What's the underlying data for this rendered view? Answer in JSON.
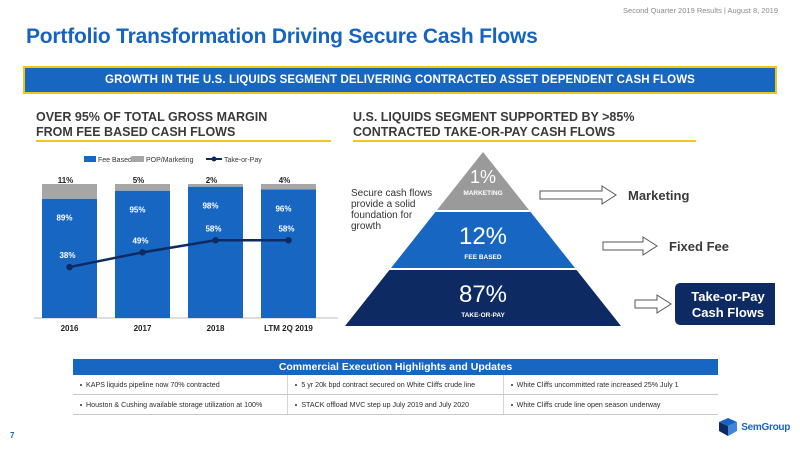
{
  "header": {
    "topnote": "Second Quarter 2019 Results | August 8, 2019",
    "title": "Portfolio Transformation Driving Secure Cash Flows"
  },
  "banner": "GROWTH IN THE U.S. LIQUIDS SEGMENT DELIVERING CONTRACTED ASSET DEPENDENT CASH FLOWS",
  "left": {
    "heading_line1": "OVER 95% OF TOTAL GROSS MARGIN",
    "heading_line2": "FROM FEE BASED CASH FLOWS"
  },
  "right": {
    "heading_line1": "U.S. LIQUIDS SEGMENT SUPPORTED BY >85%",
    "heading_line2": "CONTRACTED TAKE-OR-PAY CASH FLOWS",
    "note_lines": [
      "Secure cash flows",
      "provide a solid",
      "foundation for",
      "growth"
    ],
    "pyramid": [
      {
        "pct": "1%",
        "label": "MARKETING",
        "color": "#9a9a9a",
        "arrow_label": "Marketing"
      },
      {
        "pct": "12%",
        "label": "FEE BASED",
        "color": "#1766c2",
        "arrow_label": "Fixed Fee"
      },
      {
        "pct": "87%",
        "label": "TAKE-OR-PAY",
        "color": "#0d2a63",
        "arrow_label_lines": [
          "Take-or-Pay",
          "Cash Flows"
        ]
      }
    ]
  },
  "chart_data": {
    "type": "bar",
    "stacked": true,
    "categories": [
      "2016",
      "2017",
      "2018",
      "LTM 2Q 2019"
    ],
    "series": [
      {
        "name": "Fee Based",
        "values": [
          89,
          95,
          98,
          96
        ],
        "labels": [
          "89%",
          "95%",
          "98%",
          "96%"
        ],
        "color": "#1766c2"
      },
      {
        "name": "POP/Marketing",
        "values": [
          11,
          5,
          2,
          4
        ],
        "labels": [
          "11%",
          "5%",
          "2%",
          "4%"
        ],
        "color": "#a6a6a6"
      },
      {
        "name": "Take-or-Pay",
        "kind": "line",
        "values": [
          38,
          49,
          58,
          58
        ],
        "labels": [
          "38%",
          "49%",
          "58%",
          "58%"
        ],
        "color": "#0d2a63"
      }
    ],
    "ylim": [
      0,
      100
    ],
    "legend": "top"
  },
  "highlights": {
    "title": "Commercial Execution Highlights and Updates",
    "rows": [
      [
        "KAPS liquids pipeline now 70% contracted",
        "5 yr 20k bpd contract secured on White Cliffs crude line",
        "White Cliffs uncommitted rate increased 25% July 1"
      ],
      [
        "Houston & Cushing available storage utilization at 100%",
        "STACK offload MVC step up July 2019 and July 2020",
        "White Cliffs crude line open season underway"
      ]
    ]
  },
  "footer": {
    "page": "7",
    "logo": "SemGroup"
  }
}
